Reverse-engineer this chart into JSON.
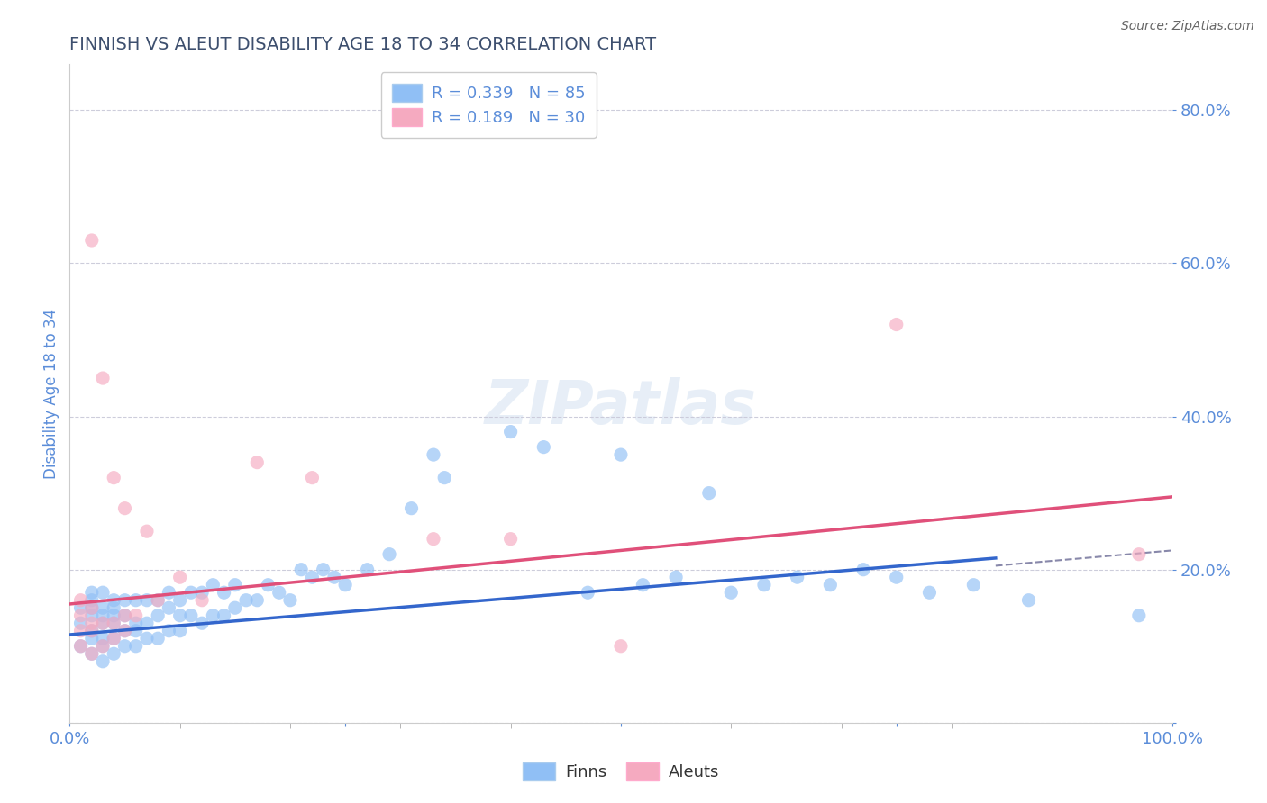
{
  "title": "FINNISH VS ALEUT DISABILITY AGE 18 TO 34 CORRELATION CHART",
  "source": "Source: ZipAtlas.com",
  "ylabel": "Disability Age 18 to 34",
  "xlim": [
    0.0,
    1.0
  ],
  "ylim": [
    0.0,
    0.86
  ],
  "yticks": [
    0.0,
    0.2,
    0.4,
    0.6,
    0.8
  ],
  "ytick_labels": [
    "",
    "20.0%",
    "40.0%",
    "60.0%",
    "80.0%"
  ],
  "title_color": "#3d4f6e",
  "axis_color": "#5b8dd9",
  "source_color": "#666666",
  "finn_color": "#90bff5",
  "aleut_color": "#f5aac0",
  "finn_line_color": "#3366cc",
  "aleut_line_color": "#e0507a",
  "dashed_line_color": "#8888aa",
  "finn_r": 0.339,
  "finn_n": 85,
  "aleut_r": 0.189,
  "aleut_n": 30,
  "background_color": "#ffffff",
  "grid_color": "#c8c8d8",
  "finn_trend_y_start": 0.115,
  "finn_trend_y_end": 0.215,
  "finn_trend_x_end": 0.84,
  "aleut_trend_y_start": 0.155,
  "aleut_trend_y_end": 0.295,
  "dashed_line_y_start": 0.205,
  "dashed_line_y_end": 0.225,
  "dashed_line_x_start": 0.84,
  "dashed_line_x_end": 1.0,
  "finn_scatter_x": [
    0.01,
    0.01,
    0.01,
    0.02,
    0.02,
    0.02,
    0.02,
    0.02,
    0.02,
    0.02,
    0.03,
    0.03,
    0.03,
    0.03,
    0.03,
    0.03,
    0.03,
    0.04,
    0.04,
    0.04,
    0.04,
    0.04,
    0.04,
    0.05,
    0.05,
    0.05,
    0.05,
    0.06,
    0.06,
    0.06,
    0.06,
    0.07,
    0.07,
    0.07,
    0.08,
    0.08,
    0.08,
    0.09,
    0.09,
    0.09,
    0.1,
    0.1,
    0.1,
    0.11,
    0.11,
    0.12,
    0.12,
    0.13,
    0.13,
    0.14,
    0.14,
    0.15,
    0.15,
    0.16,
    0.17,
    0.18,
    0.19,
    0.2,
    0.21,
    0.22,
    0.23,
    0.24,
    0.25,
    0.27,
    0.29,
    0.31,
    0.33,
    0.34,
    0.4,
    0.43,
    0.47,
    0.5,
    0.52,
    0.55,
    0.58,
    0.6,
    0.63,
    0.66,
    0.69,
    0.72,
    0.75,
    0.78,
    0.82,
    0.87,
    0.97
  ],
  "finn_scatter_y": [
    0.1,
    0.13,
    0.15,
    0.09,
    0.11,
    0.12,
    0.14,
    0.15,
    0.16,
    0.17,
    0.08,
    0.1,
    0.11,
    0.13,
    0.14,
    0.15,
    0.17,
    0.09,
    0.11,
    0.13,
    0.14,
    0.15,
    0.16,
    0.1,
    0.12,
    0.14,
    0.16,
    0.1,
    0.12,
    0.13,
    0.16,
    0.11,
    0.13,
    0.16,
    0.11,
    0.14,
    0.16,
    0.12,
    0.15,
    0.17,
    0.12,
    0.14,
    0.16,
    0.14,
    0.17,
    0.13,
    0.17,
    0.14,
    0.18,
    0.14,
    0.17,
    0.15,
    0.18,
    0.16,
    0.16,
    0.18,
    0.17,
    0.16,
    0.2,
    0.19,
    0.2,
    0.19,
    0.18,
    0.2,
    0.22,
    0.28,
    0.35,
    0.32,
    0.38,
    0.36,
    0.17,
    0.35,
    0.18,
    0.19,
    0.3,
    0.17,
    0.18,
    0.19,
    0.18,
    0.2,
    0.19,
    0.17,
    0.18,
    0.16,
    0.14
  ],
  "aleut_scatter_x": [
    0.01,
    0.01,
    0.01,
    0.01,
    0.02,
    0.02,
    0.02,
    0.02,
    0.02,
    0.03,
    0.03,
    0.03,
    0.04,
    0.04,
    0.04,
    0.05,
    0.05,
    0.05,
    0.06,
    0.07,
    0.08,
    0.1,
    0.12,
    0.17,
    0.22,
    0.33,
    0.4,
    0.5,
    0.75,
    0.97
  ],
  "aleut_scatter_y": [
    0.1,
    0.12,
    0.14,
    0.16,
    0.09,
    0.12,
    0.13,
    0.15,
    0.63,
    0.1,
    0.13,
    0.45,
    0.11,
    0.13,
    0.32,
    0.12,
    0.14,
    0.28,
    0.14,
    0.25,
    0.16,
    0.19,
    0.16,
    0.34,
    0.32,
    0.24,
    0.24,
    0.1,
    0.52,
    0.22
  ]
}
